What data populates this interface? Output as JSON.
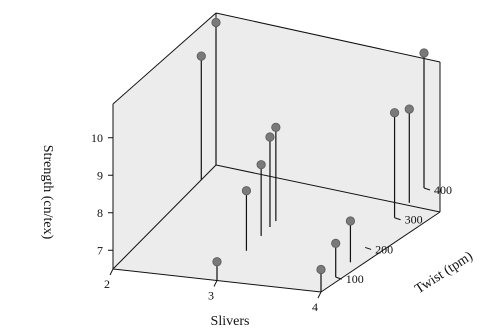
{
  "chart_data": {
    "type": "scatter",
    "subtype": "3d-stem",
    "title": "",
    "zlabel": "Strength (cn/tex)",
    "xlabel": "Slivers",
    "ylabel": "Twist (tpm)",
    "x_ticks": [
      "2",
      "3",
      "4"
    ],
    "y_ticks": [
      "100",
      "200",
      "300",
      "400"
    ],
    "z_ticks": [
      "7",
      "8",
      "9",
      "10"
    ],
    "xlim": [
      2,
      4
    ],
    "ylim": [
      50,
      400
    ],
    "zlim": [
      6.5,
      10.9
    ],
    "grid": false,
    "legend": "none",
    "points": [
      {
        "x": 2,
        "y": 400,
        "z": 10.3
      },
      {
        "x": 2,
        "y": 350,
        "z": 9.8
      },
      {
        "x": 4,
        "y": 400,
        "z": 10.1
      },
      {
        "x": 4,
        "y": 350,
        "z": 9.0
      },
      {
        "x": 4,
        "y": 300,
        "z": 9.3
      },
      {
        "x": 3,
        "y": 250,
        "z": 9.0
      },
      {
        "x": 3,
        "y": 230,
        "z": 8.9
      },
      {
        "x": 3,
        "y": 200,
        "z": 8.4
      },
      {
        "x": 3,
        "y": 150,
        "z": 8.1
      },
      {
        "x": 3,
        "y": 50,
        "z": 7.0
      },
      {
        "x": 4,
        "y": 150,
        "z": 7.6
      },
      {
        "x": 4,
        "y": 100,
        "z": 7.4
      },
      {
        "x": 4,
        "y": 50,
        "z": 7.1
      }
    ],
    "colors": {
      "marker": "#7a7a7a",
      "stem": "#111111",
      "axes": "#111111",
      "pane": "#ececec"
    }
  }
}
